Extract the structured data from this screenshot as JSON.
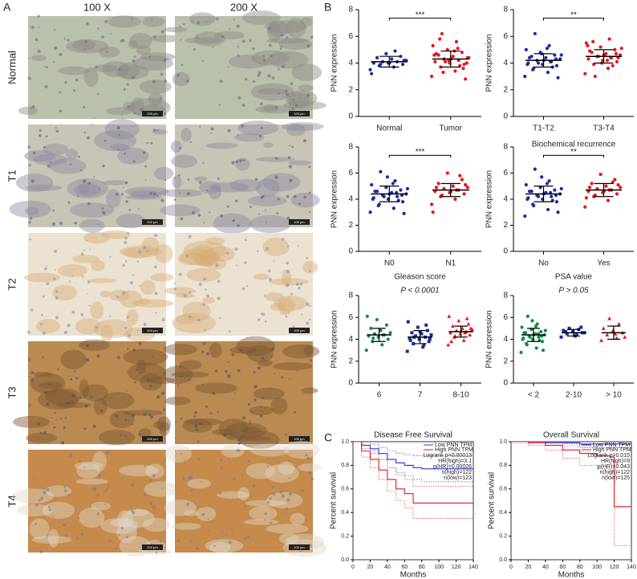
{
  "panel_labels": [
    "A",
    "B",
    "C"
  ],
  "panel_a": {
    "columns": [
      "100 X",
      "200 X"
    ],
    "rows": [
      "Normal",
      "T1",
      "T2",
      "T3",
      "T4"
    ],
    "scale_bars": [
      "200 μm",
      "100 μm"
    ]
  },
  "chart_data": [
    {
      "type": "dot",
      "ylabel": "PNN expression",
      "ylim": [
        0,
        8
      ],
      "yticks": [
        0,
        2,
        4,
        6,
        8
      ],
      "categories": [
        "Normal",
        "Tumor"
      ],
      "colors": [
        "#1f2a9c",
        "#e8141c"
      ],
      "markers": [
        "circle",
        "circle"
      ],
      "significance": "***",
      "points": [
        [
          3.5,
          3.7,
          3.8,
          3.9,
          4.0,
          4.0,
          4.1,
          4.1,
          4.2,
          4.3,
          4.4,
          4.5,
          4.7,
          3.2,
          4.9,
          3.9,
          4.2,
          4.0
        ],
        [
          3.0,
          3.4,
          3.7,
          3.9,
          4.0,
          4.1,
          4.2,
          4.3,
          4.4,
          4.5,
          4.6,
          4.8,
          5.0,
          5.3,
          5.6,
          6.2,
          2.8,
          4.3,
          4.7,
          3.8,
          4.1,
          4.4,
          4.9,
          5.8,
          3.6,
          4.2,
          4.6,
          5.1,
          3.3,
          4.0
        ]
      ],
      "means": [
        4.1,
        4.3
      ],
      "sds": [
        0.4,
        0.6
      ]
    },
    {
      "type": "dot",
      "ylabel": "PNN expression",
      "ylim": [
        0,
        8
      ],
      "yticks": [
        0,
        2,
        4,
        6,
        8
      ],
      "categories": [
        "T1-T2",
        "T3-T4"
      ],
      "colors": [
        "#1f2a9c",
        "#e8141c"
      ],
      "markers": [
        "circle",
        "circle"
      ],
      "significance": "**",
      "points": [
        [
          3.0,
          3.3,
          3.6,
          3.8,
          3.9,
          4.0,
          4.1,
          4.2,
          4.3,
          4.4,
          4.5,
          4.6,
          4.8,
          5.0,
          5.3,
          6.2,
          2.9,
          4.2,
          4.4,
          3.7,
          4.0,
          4.6,
          5.1,
          3.5,
          4.3,
          4.7,
          3.9,
          4.1
        ],
        [
          3.2,
          3.6,
          3.9,
          4.1,
          4.2,
          4.3,
          4.4,
          4.5,
          4.6,
          4.7,
          4.8,
          5.0,
          5.2,
          5.5,
          5.8,
          3.0,
          4.4,
          4.6,
          4.9,
          3.8,
          4.5,
          5.1,
          4.2,
          5.6,
          4.7,
          4.0,
          5.3,
          4.4
        ]
      ],
      "means": [
        4.2,
        4.5
      ],
      "sds": [
        0.5,
        0.5
      ]
    },
    {
      "type": "dot",
      "ylabel": "PNN expression",
      "ylim": [
        0,
        8
      ],
      "yticks": [
        0,
        2,
        4,
        6,
        8
      ],
      "categories": [
        "N0",
        "N1"
      ],
      "colors": [
        "#1f2a9c",
        "#e8141c"
      ],
      "markers": [
        "circle",
        "circle"
      ],
      "significance": "***",
      "points": [
        [
          3.0,
          3.3,
          3.6,
          3.8,
          4.0,
          4.1,
          4.2,
          4.3,
          4.4,
          4.5,
          4.6,
          4.7,
          4.9,
          5.1,
          5.4,
          6.1,
          2.9,
          4.4,
          4.6,
          3.9,
          4.2,
          4.8,
          5.2,
          3.5,
          4.3,
          5.7,
          4.0,
          4.5
        ],
        [
          3.6,
          4.0,
          4.2,
          4.4,
          4.5,
          4.6,
          4.7,
          4.8,
          4.9,
          5.0,
          5.2,
          5.5,
          6.0,
          3.0,
          4.7,
          4.3,
          5.1,
          4.6,
          4.9,
          5.8
        ]
      ],
      "means": [
        4.4,
        4.7
      ],
      "sds": [
        0.6,
        0.5
      ]
    },
    {
      "type": "dot",
      "title": "Biochemical recurrence",
      "ylabel": "PNN expression",
      "ylim": [
        0,
        8
      ],
      "yticks": [
        0,
        2,
        4,
        6,
        8
      ],
      "categories": [
        "No",
        "Yes"
      ],
      "colors": [
        "#1f2a9c",
        "#e8141c"
      ],
      "markers": [
        "circle",
        "circle"
      ],
      "significance": "**",
      "points": [
        [
          2.7,
          3.2,
          3.5,
          3.8,
          4.0,
          4.1,
          4.2,
          4.3,
          4.4,
          4.5,
          4.6,
          4.7,
          4.9,
          5.1,
          5.4,
          6.3,
          3.0,
          4.4,
          4.6,
          3.9,
          4.2,
          4.8,
          5.2,
          3.6,
          4.3,
          5.7,
          4.0,
          4.5
        ],
        [
          3.4,
          3.9,
          4.2,
          4.4,
          4.5,
          4.6,
          4.7,
          4.8,
          4.9,
          5.0,
          5.2,
          5.5,
          5.9,
          4.1,
          4.7,
          4.3,
          5.1,
          4.6,
          4.9,
          5.3
        ]
      ],
      "means": [
        4.4,
        4.7
      ],
      "sds": [
        0.6,
        0.5
      ]
    },
    {
      "type": "dot",
      "title": "Gleason score",
      "subtitle": "P < 0.0001",
      "ylabel": "PNN expression",
      "ylim": [
        0,
        8
      ],
      "yticks": [
        0,
        2,
        4,
        6,
        8
      ],
      "categories": [
        "6",
        "7",
        "8-10"
      ],
      "colors": [
        "#138a4c",
        "#1f2a9c",
        "#e8141c"
      ],
      "markers": [
        "circle",
        "square",
        "triangle"
      ],
      "points": [
        [
          3.0,
          3.5,
          3.8,
          4.0,
          4.2,
          4.3,
          4.4,
          4.5,
          4.6,
          4.8,
          5.0,
          5.3,
          5.8,
          6.1,
          4.4,
          4.1
        ],
        [
          2.9,
          3.3,
          3.6,
          3.8,
          4.0,
          4.1,
          4.2,
          4.3,
          4.4,
          4.5,
          4.6,
          4.8,
          5.1,
          5.6,
          3.5,
          4.2,
          4.0,
          4.7,
          3.9,
          5.3
        ],
        [
          3.5,
          3.9,
          4.2,
          4.4,
          4.5,
          4.6,
          4.7,
          4.8,
          4.9,
          5.0,
          5.2,
          5.4,
          5.7,
          6.1,
          4.6,
          4.3,
          5.0,
          4.8,
          3.8,
          5.9
        ]
      ],
      "means": [
        4.4,
        4.2,
        4.7
      ],
      "sds": [
        0.6,
        0.6,
        0.5
      ]
    },
    {
      "type": "dot",
      "title": "PSA value",
      "subtitle": "P > 0.05",
      "ylabel": "PNN expression",
      "ylim": [
        0,
        8
      ],
      "yticks": [
        0,
        2,
        4,
        6,
        8
      ],
      "categories": [
        "< 2",
        "2-10",
        "> 10"
      ],
      "colors": [
        "#138a4c",
        "#1f2a9c",
        "#e8141c"
      ],
      "markers": [
        "circle",
        "square",
        "triangle"
      ],
      "points": [
        [
          2.8,
          3.2,
          3.5,
          3.8,
          4.0,
          4.1,
          4.2,
          4.3,
          4.4,
          4.5,
          4.6,
          4.7,
          4.9,
          5.1,
          5.4,
          6.1,
          3.0,
          4.4,
          4.6,
          3.9,
          4.2,
          4.8,
          5.2,
          3.6,
          4.3,
          5.7,
          4.0,
          4.5
        ],
        [
          4.2,
          4.4,
          4.5,
          4.6,
          4.7,
          4.8,
          4.9,
          5.0,
          4.6,
          4.3,
          4.7,
          5.1
        ],
        [
          3.9,
          4.1,
          4.4,
          4.6,
          4.8,
          5.0,
          5.4,
          5.9,
          4.2,
          4.5
        ]
      ],
      "means": [
        4.4,
        4.6,
        4.6
      ],
      "sds": [
        0.6,
        0.3,
        0.6
      ]
    },
    {
      "type": "survival",
      "title": "Disease Free Survival",
      "xlabel": "Months",
      "ylabel": "Percent survival",
      "xlim": [
        0,
        140
      ],
      "xticks": [
        0,
        20,
        40,
        60,
        80,
        100,
        120,
        140
      ],
      "ylim": [
        0,
        1
      ],
      "yticks": [
        {
          "value": 0,
          "label": "0.0"
        },
        {
          "value": 0.2,
          "label": "0.2"
        },
        {
          "value": 0.4,
          "label": "0.4"
        },
        {
          "value": 0.6,
          "label": "0.6"
        },
        {
          "value": 0.8,
          "label": "0.8"
        },
        {
          "value": 1,
          "label": "1.0"
        }
      ],
      "stats": [
        "Logrank p=0.00013",
        "HR(high)=3.1",
        "p(HR)=0.00026",
        "n(high)=122",
        "n(low)=123"
      ],
      "series": [
        {
          "name": "Low PNN TPM",
          "color": "#2b35e0",
          "x": [
            0,
            10,
            20,
            30,
            40,
            50,
            60,
            70,
            80,
            100,
            120,
            140
          ],
          "values": [
            1,
            0.97,
            0.94,
            0.9,
            0.85,
            0.82,
            0.8,
            0.78,
            0.77,
            0.77,
            0.77,
            0.77
          ],
          "lower": [
            1,
            0.94,
            0.9,
            0.85,
            0.78,
            0.74,
            0.71,
            0.68,
            0.66,
            0.66,
            0.66,
            0.66
          ],
          "upper": [
            1,
            1,
            0.98,
            0.95,
            0.92,
            0.9,
            0.89,
            0.88,
            0.88,
            0.88,
            0.88,
            0.88
          ]
        },
        {
          "name": "High PNN TPM",
          "color": "#e8141c",
          "x": [
            0,
            10,
            20,
            30,
            40,
            50,
            60,
            70,
            80,
            100,
            120,
            140
          ],
          "values": [
            1,
            0.92,
            0.85,
            0.76,
            0.68,
            0.6,
            0.56,
            0.48,
            0.48,
            0.48,
            0.48,
            0.48
          ],
          "lower": [
            1,
            0.87,
            0.78,
            0.68,
            0.58,
            0.5,
            0.44,
            0.35,
            0.35,
            0.35,
            0.35,
            0.35
          ],
          "upper": [
            1,
            0.97,
            0.92,
            0.85,
            0.78,
            0.72,
            0.68,
            0.62,
            0.62,
            0.62,
            0.62,
            0.62
          ]
        }
      ]
    },
    {
      "type": "survival",
      "title": "Overall Survival",
      "xlabel": "Months",
      "ylabel": "Percent survival",
      "xlim": [
        0,
        140
      ],
      "xticks": [
        0,
        20,
        40,
        60,
        80,
        100,
        120,
        140
      ],
      "ylim": [
        0,
        1
      ],
      "yticks": [
        {
          "value": 0,
          "label": "0.0"
        },
        {
          "value": 0.2,
          "label": "0.2"
        },
        {
          "value": 0.4,
          "label": "0.4"
        },
        {
          "value": 0.6,
          "label": "0.6"
        },
        {
          "value": 0.8,
          "label": "0.8"
        },
        {
          "value": 1,
          "label": "1.0"
        }
      ],
      "stats": [
        "Logrank p=0.015",
        "HR(high)=9",
        "p(HR)=0.043",
        "n(high)=122",
        "n(low)=125"
      ],
      "series": [
        {
          "name": "Low PNN TPM",
          "color": "#2b35e0",
          "x": [
            0,
            20,
            40,
            60,
            80,
            100,
            120,
            140
          ],
          "values": [
            1,
            1,
            0.99,
            0.99,
            0.98,
            0.98,
            0.98,
            0.98
          ],
          "lower": [
            1,
            0.99,
            0.97,
            0.96,
            0.95,
            0.95,
            0.95,
            0.95
          ],
          "upper": [
            1,
            1,
            1,
            1,
            1,
            1,
            1,
            1
          ]
        },
        {
          "name": "High PNN TPM",
          "color": "#e8141c",
          "x": [
            0,
            20,
            40,
            60,
            80,
            100,
            115,
            120,
            140
          ],
          "values": [
            1,
            0.99,
            0.97,
            0.93,
            0.9,
            0.88,
            0.87,
            0.45,
            0.45
          ],
          "lower": [
            1,
            0.97,
            0.93,
            0.86,
            0.8,
            0.77,
            0.75,
            0.12,
            0.12
          ],
          "upper": [
            1,
            1,
            1,
            0.98,
            0.96,
            0.95,
            0.95,
            0.95,
            0.95
          ]
        }
      ]
    }
  ]
}
